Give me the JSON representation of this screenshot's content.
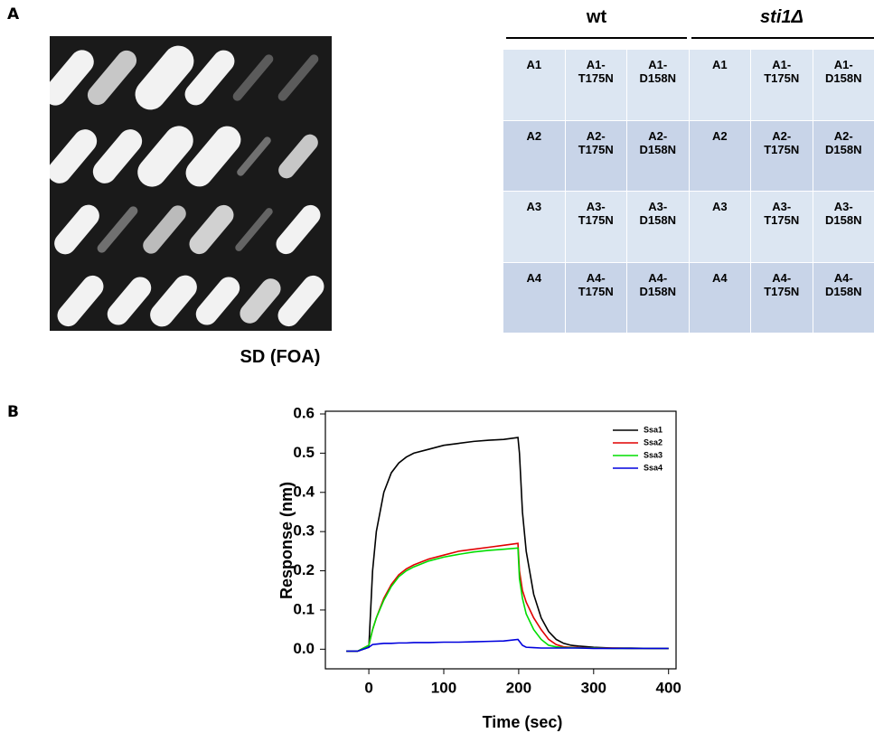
{
  "panel_a": {
    "label": "A",
    "plate_caption": "SD (FOA)",
    "groups": [
      "wt",
      "sti1Δ"
    ],
    "table": {
      "rows": [
        [
          "A1",
          "A1-\nT175N",
          "A1-\nD158N",
          "A1",
          "A1-\nT175N",
          "A1-\nD158N"
        ],
        [
          "A2",
          "A2-\nT175N",
          "A2-\nD158N",
          "A2",
          "A2-\nT175N",
          "A2-\nD158N"
        ],
        [
          "A3",
          "A3-\nT175N",
          "A3-\nD158N",
          "A3",
          "A3-\nT175N",
          "A3-\nD158N"
        ],
        [
          "A4",
          "A4-\nT175N",
          "A4-\nD158N",
          "A4",
          "A4-\nT175N",
          "A4-\nD158N"
        ]
      ]
    }
  },
  "panel_b": {
    "label": "B"
  },
  "chart_data": {
    "type": "line",
    "x_label": "Time (sec)",
    "y_label": "Response (nm)",
    "x": [
      -30,
      -15,
      0,
      5,
      10,
      20,
      30,
      40,
      50,
      60,
      80,
      100,
      120,
      140,
      160,
      180,
      199,
      201,
      205,
      210,
      220,
      230,
      240,
      250,
      260,
      270,
      280,
      300,
      325,
      350,
      375,
      400
    ],
    "series": [
      {
        "name": "Ssa1",
        "color": "#000000",
        "values": [
          -0.005,
          -0.005,
          0.005,
          0.2,
          0.3,
          0.4,
          0.45,
          0.475,
          0.49,
          0.5,
          0.51,
          0.52,
          0.525,
          0.53,
          0.533,
          0.535,
          0.54,
          0.5,
          0.35,
          0.25,
          0.14,
          0.08,
          0.045,
          0.025,
          0.015,
          0.01,
          0.008,
          0.005,
          0.003,
          0.003,
          0.002,
          0.002
        ]
      },
      {
        "name": "Ssa2",
        "color": "#e00000",
        "values": [
          -0.005,
          -0.005,
          0.01,
          0.05,
          0.08,
          0.13,
          0.165,
          0.19,
          0.205,
          0.215,
          0.23,
          0.24,
          0.25,
          0.255,
          0.26,
          0.265,
          0.27,
          0.2,
          0.15,
          0.12,
          0.08,
          0.05,
          0.025,
          0.012,
          0.006,
          0.005,
          0.004,
          0.003,
          0.003,
          0.002,
          0.002,
          0.002
        ]
      },
      {
        "name": "Ssa3",
        "color": "#00dd00",
        "values": [
          -0.005,
          -0.005,
          0.01,
          0.05,
          0.08,
          0.125,
          0.16,
          0.185,
          0.2,
          0.21,
          0.225,
          0.235,
          0.242,
          0.248,
          0.252,
          0.255,
          0.258,
          0.18,
          0.13,
          0.09,
          0.05,
          0.025,
          0.01,
          0.006,
          0.004,
          0.004,
          0.003,
          0.003,
          0.002,
          0.002,
          0.002,
          0.002
        ]
      },
      {
        "name": "Ssa4",
        "color": "#0000dd",
        "values": [
          -0.005,
          -0.005,
          0.005,
          0.012,
          0.013,
          0.015,
          0.015,
          0.016,
          0.016,
          0.017,
          0.017,
          0.018,
          0.018,
          0.019,
          0.02,
          0.021,
          0.025,
          0.02,
          0.01,
          0.005,
          0.004,
          0.003,
          0.003,
          0.003,
          0.003,
          0.003,
          0.003,
          0.002,
          0.002,
          0.002,
          0.002,
          0.002
        ]
      }
    ],
    "xlim": [
      -58,
      410
    ],
    "ylim": [
      -0.05,
      0.6
    ],
    "xticks": [
      0,
      100,
      200,
      300,
      400
    ],
    "yticks": [
      {
        "value": 0,
        "label": "0.0"
      },
      0.1,
      0.2,
      0.3,
      0.4,
      0.5,
      0.6
    ],
    "legend": "upper right"
  }
}
